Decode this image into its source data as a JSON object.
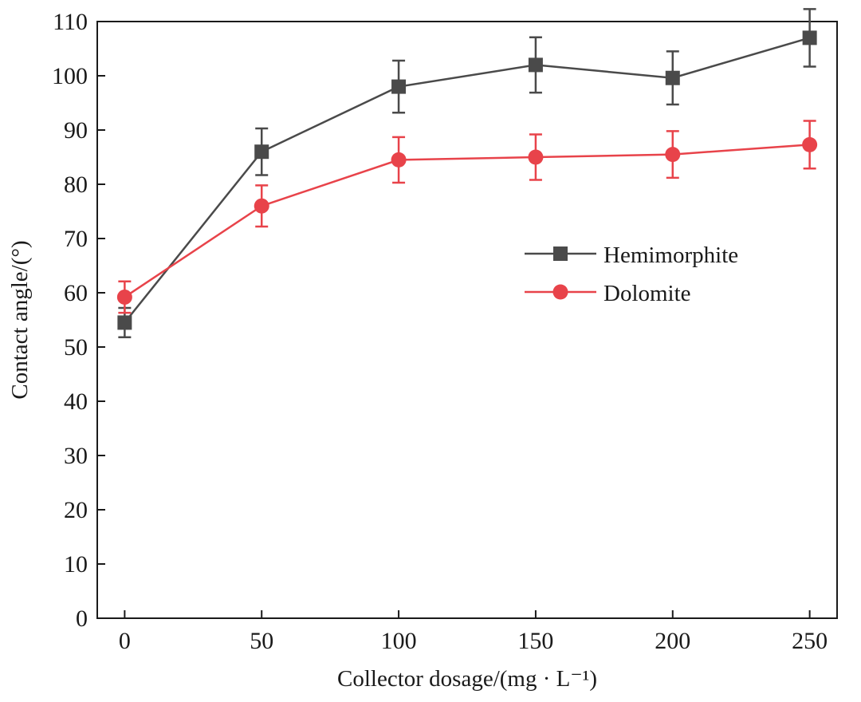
{
  "chart_data": {
    "type": "line",
    "title": "",
    "xlabel": "Collector dosage/(mg · L⁻¹)",
    "ylabel": "Contact angle/(°)",
    "xlim": [
      -10,
      260
    ],
    "ylim": [
      0,
      110
    ],
    "x_ticks": [
      0,
      50,
      100,
      150,
      200,
      250
    ],
    "y_ticks": [
      0,
      10,
      20,
      30,
      40,
      50,
      60,
      70,
      80,
      90,
      100,
      110
    ],
    "grid": false,
    "legend_position": "center-right",
    "x": [
      0,
      50,
      100,
      150,
      200,
      250
    ],
    "series": [
      {
        "name": "Hemimorphite",
        "color": "#4a4a4a",
        "marker": "square",
        "values": [
          54.5,
          86,
          98,
          102,
          99.6,
          107
        ],
        "errors": [
          2.7,
          4.3,
          4.8,
          5.1,
          4.9,
          5.3
        ]
      },
      {
        "name": "Dolomite",
        "color": "#e8434a",
        "marker": "circle",
        "values": [
          59.2,
          76,
          84.5,
          85,
          85.5,
          87.3
        ],
        "errors": [
          2.9,
          3.8,
          4.2,
          4.2,
          4.3,
          4.4
        ]
      }
    ]
  }
}
